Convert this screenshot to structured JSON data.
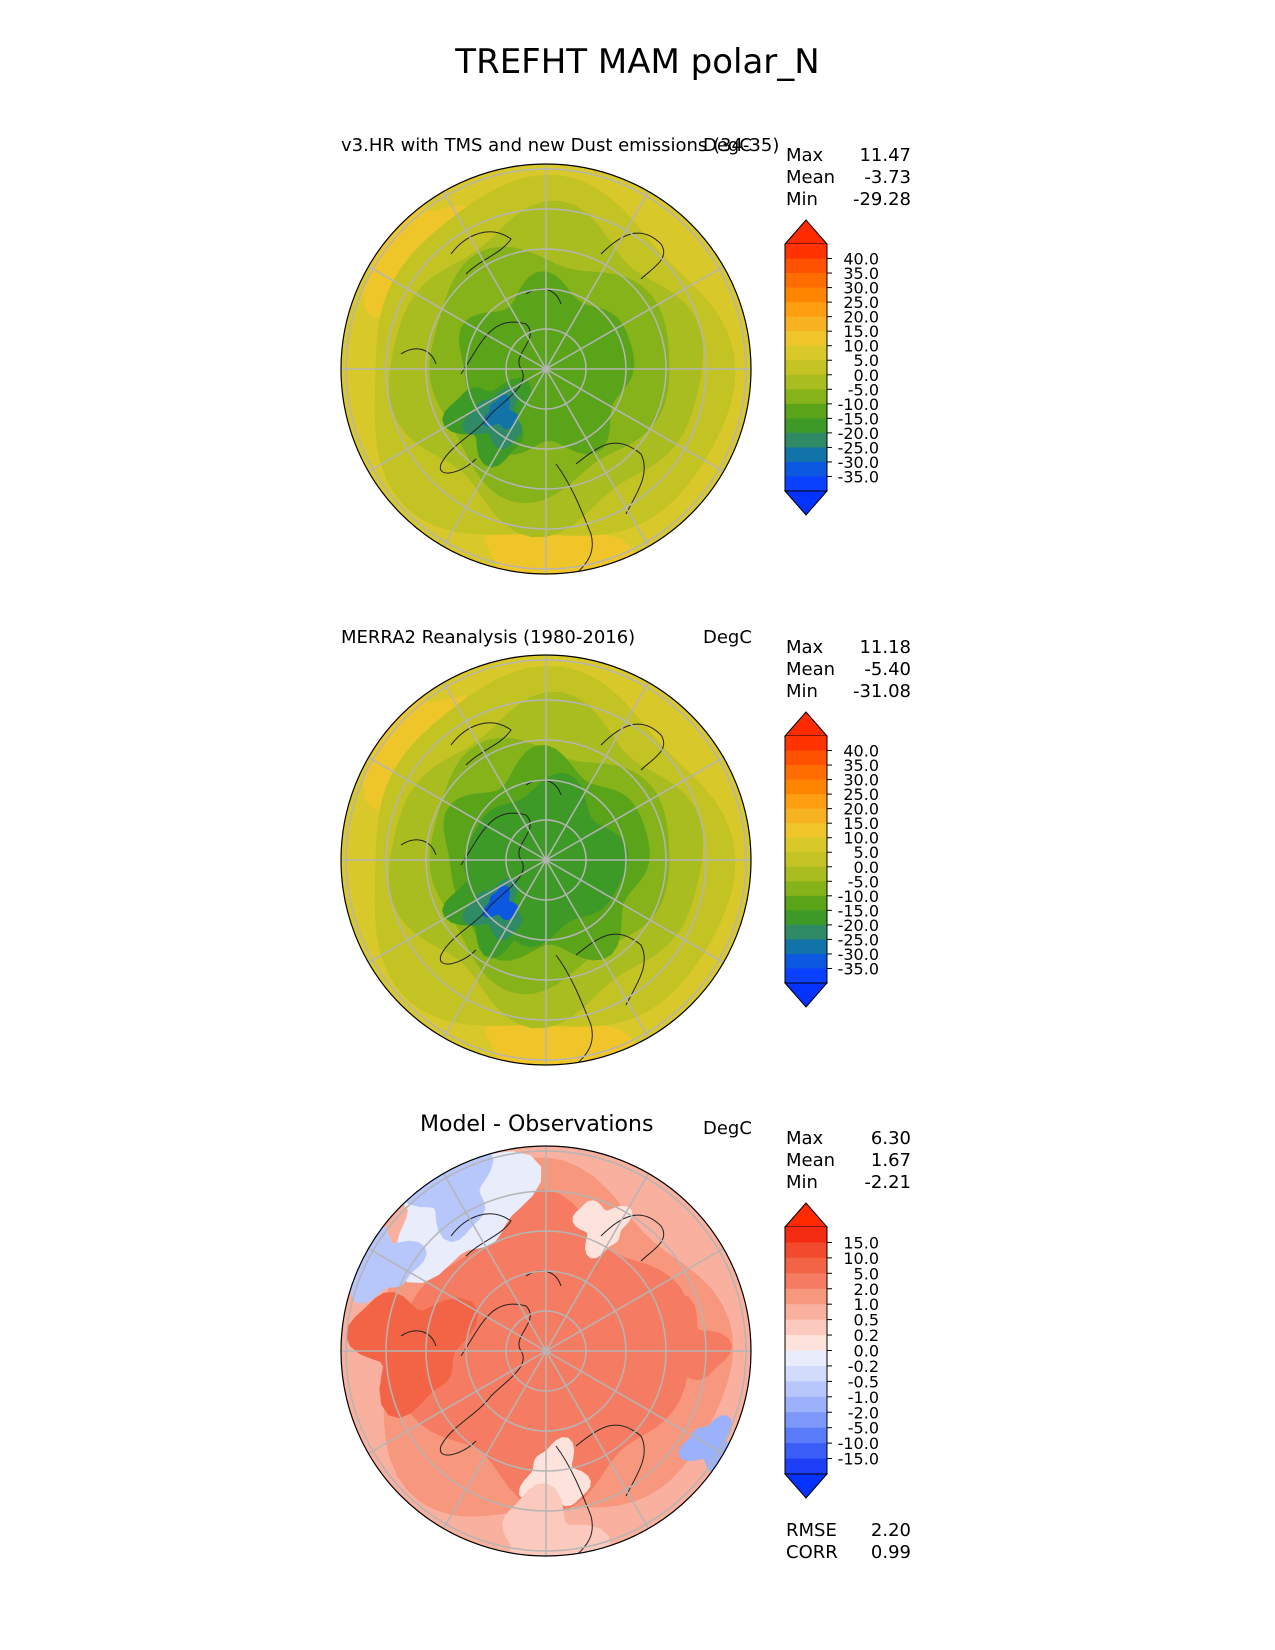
{
  "title": "TREFHT MAM polar_N",
  "panels": [
    {
      "title": "v3.HR with TMS and new Dust emissions (34-35)",
      "units": "DegC",
      "stats": [
        {
          "label": "Max",
          "value": "11.47"
        },
        {
          "label": "Mean",
          "value": "-3.73"
        },
        {
          "label": "Min",
          "value": "-29.28"
        }
      ],
      "colorbar": {
        "ticks": [
          "40.0",
          "35.0",
          "30.0",
          "25.0",
          "20.0",
          "15.0",
          "10.0",
          "5.0",
          "0.0",
          "-5.0",
          "-10.0",
          "-15.0",
          "-20.0",
          "-25.0",
          "-30.0",
          "-35.0"
        ],
        "colors": [
          "#ff3300",
          "#ff5200",
          "#ff6d00",
          "#ff8500",
          "#ff9e10",
          "#f7b221",
          "#f0c52a",
          "#d9c82a",
          "#c3c324",
          "#a9bd20",
          "#86b21a",
          "#5aa41a",
          "#3e9a26",
          "#2f8a66",
          "#1173a8",
          "#0c58e0",
          "#0a40ff"
        ],
        "over_color": "#ff2a00",
        "under_color": "#0433ff"
      }
    },
    {
      "title": "MERRA2 Reanalysis (1980-2016)",
      "units": "DegC",
      "stats": [
        {
          "label": "Max",
          "value": "11.18"
        },
        {
          "label": "Mean",
          "value": "-5.40"
        },
        {
          "label": "Min",
          "value": "-31.08"
        }
      ],
      "colorbar": {
        "ticks": [
          "40.0",
          "35.0",
          "30.0",
          "25.0",
          "20.0",
          "15.0",
          "10.0",
          "5.0",
          "0.0",
          "-5.0",
          "-10.0",
          "-15.0",
          "-20.0",
          "-25.0",
          "-30.0",
          "-35.0"
        ],
        "colors": [
          "#ff3300",
          "#ff5200",
          "#ff6d00",
          "#ff8500",
          "#ff9e10",
          "#f7b221",
          "#f0c52a",
          "#d9c82a",
          "#c3c324",
          "#a9bd20",
          "#86b21a",
          "#5aa41a",
          "#3e9a26",
          "#2f8a66",
          "#1173a8",
          "#0c58e0",
          "#0a40ff"
        ],
        "over_color": "#ff2a00",
        "under_color": "#0433ff"
      }
    },
    {
      "title": "Model - Observations",
      "units": "DegC",
      "stats": [
        {
          "label": "Max",
          "value": "6.30"
        },
        {
          "label": "Mean",
          "value": "1.67"
        },
        {
          "label": "Min",
          "value": "-2.21"
        }
      ],
      "colorbar": {
        "ticks": [
          "15.0",
          "10.0",
          "5.0",
          "2.0",
          "1.0",
          "0.5",
          "0.2",
          "0.0",
          "-0.2",
          "-0.5",
          "-1.0",
          "-2.0",
          "-5.0",
          "-10.0",
          "-15.0"
        ],
        "colors": [
          "#f32b10",
          "#f24a2c",
          "#f36446",
          "#f57c62",
          "#f7977d",
          "#f9b09e",
          "#fbc9bd",
          "#fde3dc",
          "#e9edfb",
          "#d2dbfb",
          "#b7c7fb",
          "#9bb1fb",
          "#7d97fa",
          "#5a7bfa",
          "#3a5cf7",
          "#1d3ff5"
        ],
        "over_color": "#ff2a00",
        "under_color": "#0433ff"
      },
      "extra_stats": [
        {
          "label": "RMSE",
          "value": "2.20"
        },
        {
          "label": "CORR",
          "value": "0.99"
        }
      ]
    }
  ]
}
